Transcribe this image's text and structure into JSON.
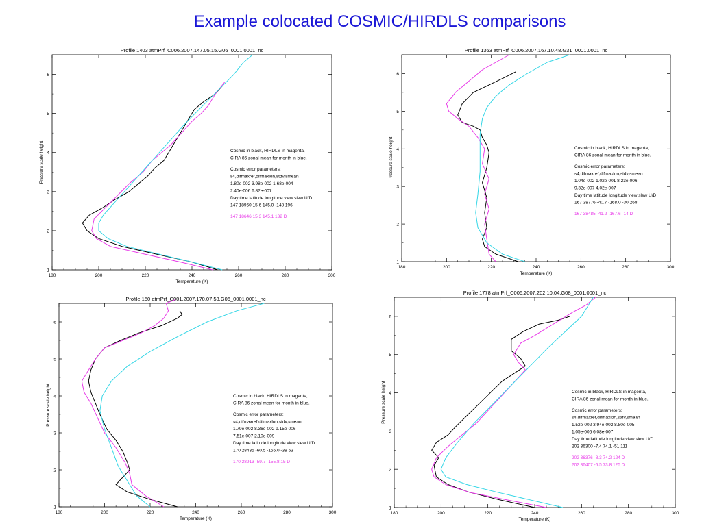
{
  "title": "Example colocated COSMIC/HIRDLS comparisons",
  "colors": {
    "cosmic": "#000000",
    "hirdls": "#e83ae8",
    "cira": "#33d6e6",
    "title": "#1a16d6"
  },
  "chart_data": [
    {
      "type": "line",
      "title": "Profile   1403  atmPrf_C006.2007.147.05.15.G06_0001.0001_nc",
      "xlabel": "Temperature (K)",
      "ylabel": "Pressure scale height",
      "xlim": [
        180,
        300
      ],
      "ylim": [
        1,
        6.5
      ],
      "xticks": [
        180,
        200,
        220,
        240,
        260,
        280,
        300
      ],
      "yticks": [
        1,
        2,
        3,
        4,
        5,
        6
      ],
      "annotations": [
        {
          "text": "Cosmic in black, HIRDLS in magenta,",
          "color": "black"
        },
        {
          "text": "CIRA 86 zonal mean for month in blue.",
          "color": "black"
        },
        {
          "text": "",
          "color": "black"
        },
        {
          "text": "Cosmic error parameters:",
          "color": "black"
        },
        {
          "text": "s4,difmaxref,difmaxlon,stdv,smean",
          "color": "black"
        },
        {
          "text": " 1.80e-002  3.98e-002  1.68e-004",
          "color": "black"
        },
        {
          "text": " 2.40e-006  6.82e-007",
          "color": "black"
        },
        {
          "text": "Day  time  latitude  longitude  view   slew  U/D",
          "color": "black"
        },
        {
          "text": "147  18960    15.6    145.0  -148    196",
          "color": "black"
        },
        {
          "text": "",
          "color": "black"
        },
        {
          "text": "147  18646   15.3   145.1   132        D",
          "color": "magenta"
        }
      ],
      "series": [
        {
          "color": "cosmic",
          "x": [
            251,
            240,
            225,
            210,
            200,
            195,
            193,
            196,
            202,
            207,
            213,
            217,
            221,
            224,
            228,
            230,
            233,
            236,
            239,
            241,
            245,
            250,
            253
          ],
          "y": [
            1.0,
            1.2,
            1.4,
            1.6,
            1.8,
            2.0,
            2.2,
            2.4,
            2.6,
            2.8,
            3.0,
            3.2,
            3.4,
            3.6,
            3.8,
            4.0,
            4.3,
            4.6,
            4.9,
            5.1,
            5.3,
            5.5,
            5.7
          ]
        },
        {
          "color": "hirdls",
          "x": [
            249,
            235,
            220,
            205,
            199,
            197,
            198,
            203,
            208,
            213,
            219,
            223,
            227,
            231,
            234,
            237,
            240,
            244,
            247,
            250,
            254
          ],
          "y": [
            1.0,
            1.2,
            1.4,
            1.6,
            1.8,
            2.0,
            2.3,
            2.6,
            2.9,
            3.2,
            3.5,
            3.8,
            4.0,
            4.2,
            4.4,
            4.6,
            4.8,
            5.0,
            5.2,
            5.5,
            5.8
          ]
        },
        {
          "color": "cira",
          "x": [
            253,
            240,
            226,
            212,
            204,
            200,
            200,
            202,
            208,
            214,
            220,
            226,
            232,
            238,
            243,
            248,
            253,
            258,
            262,
            266
          ],
          "y": [
            1.0,
            1.2,
            1.4,
            1.6,
            1.8,
            2.0,
            2.2,
            2.4,
            2.8,
            3.2,
            3.6,
            4.0,
            4.4,
            4.8,
            5.1,
            5.4,
            5.7,
            6.0,
            6.3,
            6.5
          ]
        }
      ]
    },
    {
      "type": "line",
      "title": "Profile   1363  atmPrf_C006.2007.167.10.48.G31_0001.0001_nc",
      "xlabel": "Temperature (K)",
      "ylabel": "Pressure scale height",
      "xlim": [
        180,
        300
      ],
      "ylim": [
        1,
        6.5
      ],
      "xticks": [
        180,
        200,
        220,
        240,
        260,
        280,
        300
      ],
      "yticks": [
        1,
        2,
        3,
        4,
        5,
        6
      ],
      "annotations": [
        {
          "text": "Cosmic in black, HIRDLS in magenta,",
          "color": "black"
        },
        {
          "text": "CIRA 86 zonal mean for month in blue.",
          "color": "black"
        },
        {
          "text": "",
          "color": "black"
        },
        {
          "text": "Cosmic error parameters:",
          "color": "black"
        },
        {
          "text": "s4,difmaxref,difmaxlon,stdv,smean",
          "color": "black"
        },
        {
          "text": " 1.04e-002  1.02e-001  8.23e-006",
          "color": "black"
        },
        {
          "text": " 9.32e-007  4.02e-007",
          "color": "black"
        },
        {
          "text": "Day  time  latitude  longitude  view   slew  U/D",
          "color": "black"
        },
        {
          "text": "167  38776  -40.7  -168.0   -30   268",
          "color": "black"
        },
        {
          "text": "",
          "color": "black"
        },
        {
          "text": "167  38485  -41.2  -167.6   -14          D",
          "color": "magenta"
        }
      ],
      "series": [
        {
          "color": "cosmic",
          "x": [
            232,
            222,
            217,
            216,
            218,
            217,
            218,
            216,
            218,
            219,
            218,
            216,
            215,
            212,
            207,
            205,
            207,
            212,
            219,
            226,
            231
          ],
          "y": [
            1.0,
            1.2,
            1.4,
            1.6,
            1.9,
            2.3,
            2.7,
            3.1,
            3.5,
            3.9,
            4.1,
            4.3,
            4.5,
            4.6,
            4.7,
            4.9,
            5.2,
            5.5,
            5.7,
            5.9,
            6.05
          ]
        },
        {
          "color": "hirdls",
          "x": [
            222,
            219,
            218,
            217,
            219,
            217,
            219,
            216,
            217,
            214,
            210,
            205,
            201,
            200,
            204,
            210,
            216,
            222,
            228
          ],
          "y": [
            1.0,
            1.2,
            1.6,
            2.0,
            2.4,
            2.8,
            3.2,
            3.6,
            4.0,
            4.3,
            4.6,
            4.8,
            5.0,
            5.2,
            5.5,
            5.8,
            6.1,
            6.3,
            6.5
          ]
        },
        {
          "color": "cira",
          "x": [
            235,
            225,
            218,
            214,
            213,
            214,
            215,
            215,
            215,
            216,
            218,
            222,
            228,
            236,
            245,
            255
          ],
          "y": [
            1.0,
            1.2,
            1.5,
            1.9,
            2.3,
            2.8,
            3.4,
            4.0,
            4.4,
            4.8,
            5.1,
            5.4,
            5.7,
            6.0,
            6.3,
            6.5
          ]
        }
      ]
    },
    {
      "type": "line",
      "title": "Profile    150  atmPrf_C001.2007.170.07.53.G06_0001.0001_nc",
      "xlabel": "Temperature (K)",
      "ylabel": "Pressure scale height",
      "xlim": [
        180,
        300
      ],
      "ylim": [
        1,
        6.5
      ],
      "xticks": [
        180,
        200,
        220,
        240,
        260,
        280,
        300
      ],
      "yticks": [
        1,
        2,
        3,
        4,
        5,
        6
      ],
      "annotations": [
        {
          "text": "Cosmic in black, HIRDLS in magenta,",
          "color": "black"
        },
        {
          "text": "CIRA 86 zonal mean for month in blue.",
          "color": "black"
        },
        {
          "text": "",
          "color": "black"
        },
        {
          "text": "Cosmic error parameters:",
          "color": "black"
        },
        {
          "text": "s4,difmaxref,difmaxlon,stdv,smean",
          "color": "black"
        },
        {
          "text": " 1.79e-002  8.36e-002  9.15e-006",
          "color": "black"
        },
        {
          "text": " 7.51e-007  2.10e-009",
          "color": "black"
        },
        {
          "text": "Day  time  latitude  longitude  view   slew  U/D",
          "color": "black"
        },
        {
          "text": "170  28435  -60.5  -155.0   -38     63",
          "color": "black"
        },
        {
          "text": "",
          "color": "black"
        },
        {
          "text": "170  28913  -59.7  -155.8    15          D",
          "color": "magenta"
        }
      ],
      "series": [
        {
          "color": "cosmic",
          "x": [
            232,
            220,
            210,
            205,
            208,
            211,
            210,
            208,
            205,
            201,
            198,
            196,
            194,
            193,
            194,
            196,
            200,
            207,
            215,
            225,
            232,
            234,
            233
          ],
          "y": [
            1.0,
            1.2,
            1.4,
            1.6,
            1.8,
            2.0,
            2.2,
            2.5,
            2.8,
            3.1,
            3.5,
            3.8,
            4.1,
            4.4,
            4.7,
            5.0,
            5.3,
            5.5,
            5.7,
            5.9,
            6.1,
            6.2,
            6.3
          ]
        },
        {
          "color": "hirdls",
          "x": [
            226,
            218,
            212,
            211,
            209,
            205,
            200,
            197,
            194,
            191,
            190,
            193,
            196,
            200,
            208,
            216,
            222,
            226,
            228,
            227,
            231
          ],
          "y": [
            1.0,
            1.3,
            1.6,
            1.9,
            2.2,
            2.6,
            3.0,
            3.4,
            3.8,
            4.1,
            4.4,
            4.7,
            5.0,
            5.3,
            5.5,
            5.7,
            5.9,
            6.1,
            6.3,
            6.5,
            6.6
          ]
        },
        {
          "color": "cira",
          "x": [
            220,
            214,
            210,
            206,
            203,
            200,
            198,
            199,
            203,
            210,
            220,
            232,
            245,
            258,
            270
          ],
          "y": [
            1.0,
            1.3,
            1.7,
            2.1,
            2.6,
            3.1,
            3.6,
            4.0,
            4.4,
            4.8,
            5.2,
            5.6,
            6.0,
            6.3,
            6.5
          ]
        }
      ]
    },
    {
      "type": "line",
      "title": "Profile   1778  atmPrf_C006.2007.202.10.04.G08_0001.0001_nc",
      "xlabel": "Temperature (K)",
      "ylabel": "Pressure scale height",
      "xlim": [
        180,
        300
      ],
      "ylim": [
        1,
        6.5
      ],
      "xticks": [
        180,
        200,
        220,
        240,
        260,
        280,
        300
      ],
      "yticks": [
        1,
        2,
        3,
        4,
        5,
        6
      ],
      "annotations": [
        {
          "text": "Cosmic in black, HIRDLS in magenta,",
          "color": "black"
        },
        {
          "text": "CIRA 86 zonal mean for month in blue.",
          "color": "black"
        },
        {
          "text": "",
          "color": "black"
        },
        {
          "text": "Cosmic error parameters:",
          "color": "black"
        },
        {
          "text": "s4,difmaxref,difmaxlon,stdv,smean",
          "color": "black"
        },
        {
          "text": " 1.52e-002  3.94e-002  8.80e-005",
          "color": "black"
        },
        {
          "text": " 1.05e-006  6.08e-007",
          "color": "black"
        },
        {
          "text": "Day  time  latitude  longitude  view   slew  U/D",
          "color": "black"
        },
        {
          "text": "202  36300   -7.4    74.1   -51    111",
          "color": "black"
        },
        {
          "text": "",
          "color": "black"
        },
        {
          "text": "202  36376   -8.3    74.2   124          D",
          "color": "magenta"
        },
        {
          "text": "202  36407   -6.5    73.8   125          D",
          "color": "magenta"
        }
      ],
      "series": [
        {
          "color": "cosmic",
          "x": [
            240,
            225,
            212,
            203,
            198,
            197,
            199,
            196,
            198,
            203,
            206,
            211,
            216,
            221,
            226,
            231,
            236,
            234,
            230,
            230,
            235,
            242,
            250,
            255
          ],
          "y": [
            1.0,
            1.2,
            1.4,
            1.6,
            1.8,
            2.1,
            2.3,
            2.5,
            2.7,
            2.9,
            3.1,
            3.4,
            3.7,
            4.0,
            4.3,
            4.5,
            4.7,
            4.9,
            5.1,
            5.4,
            5.6,
            5.8,
            5.9,
            6.0
          ]
        },
        {
          "color": "hirdls",
          "x": [
            245,
            228,
            212,
            202,
            197,
            196,
            198,
            203,
            209,
            215,
            221,
            227,
            233,
            236,
            233,
            231,
            234,
            240,
            248,
            256,
            262,
            266
          ],
          "y": [
            1.0,
            1.2,
            1.4,
            1.6,
            1.8,
            2.0,
            2.3,
            2.6,
            2.9,
            3.2,
            3.6,
            4.0,
            4.4,
            4.6,
            4.8,
            5.0,
            5.3,
            5.5,
            5.8,
            6.1,
            6.3,
            6.5
          ]
        },
        {
          "color": "cira",
          "x": [
            252,
            238,
            224,
            211,
            202,
            200,
            202,
            207,
            214,
            222,
            230,
            238,
            246,
            253,
            260,
            265
          ],
          "y": [
            1.0,
            1.2,
            1.4,
            1.6,
            1.8,
            2.0,
            2.3,
            2.7,
            3.2,
            3.7,
            4.2,
            4.7,
            5.2,
            5.6,
            6.0,
            6.5
          ]
        }
      ]
    }
  ]
}
